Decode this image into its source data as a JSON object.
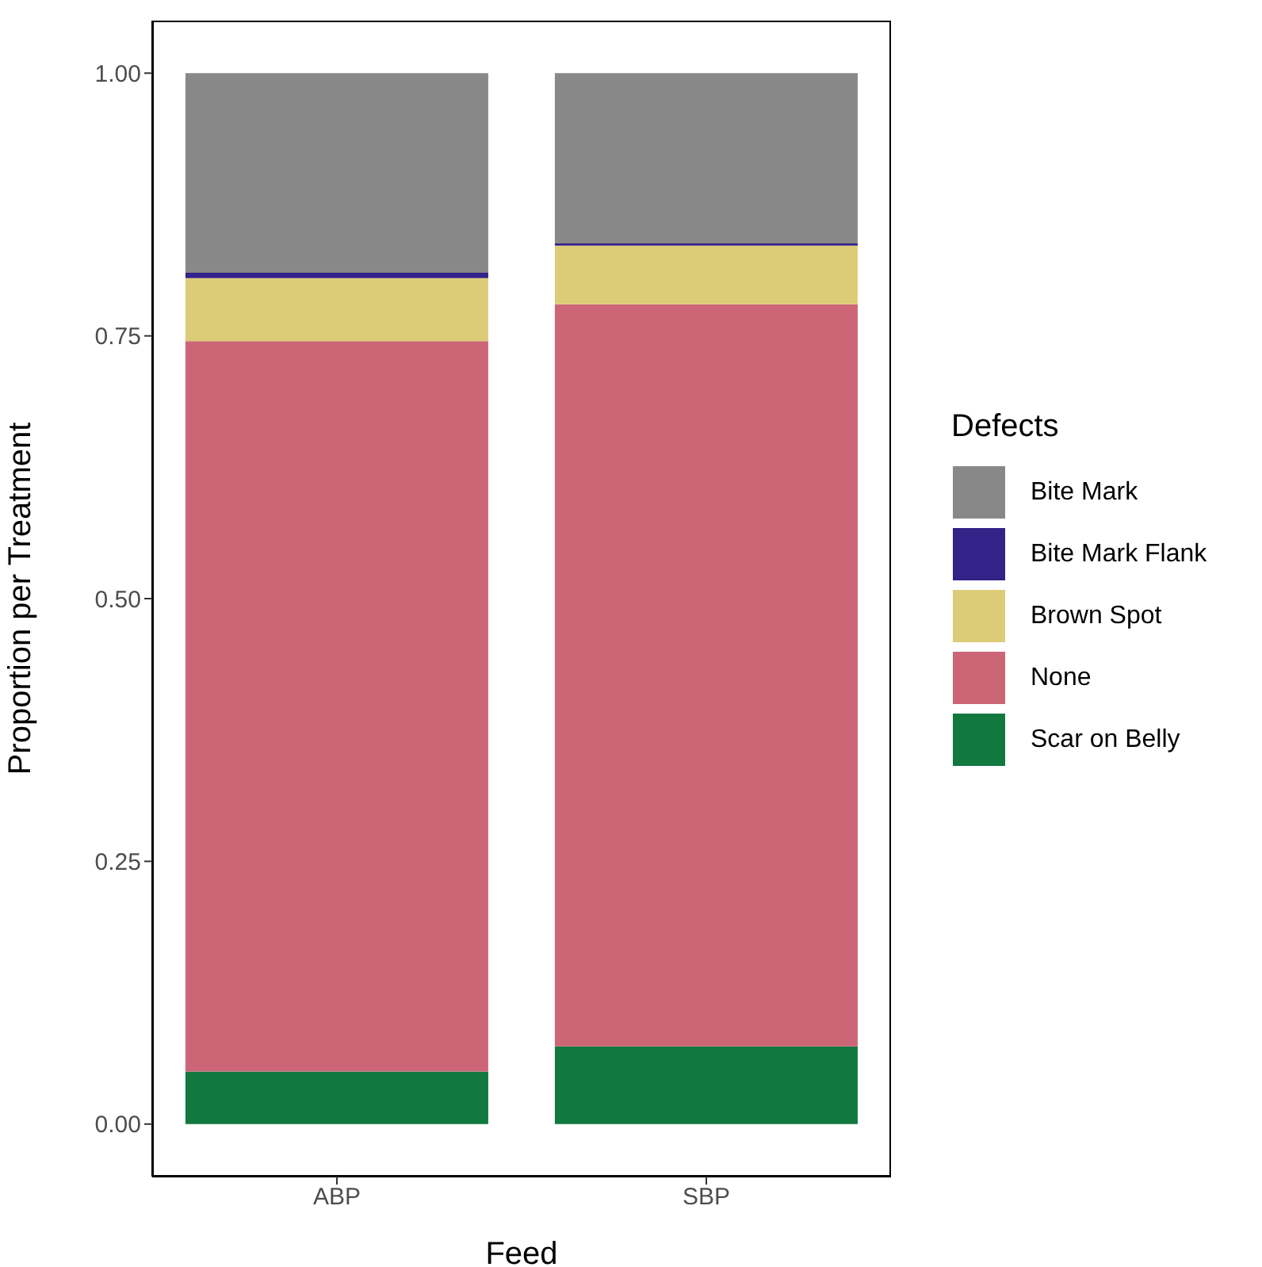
{
  "chart_data": {
    "type": "bar",
    "stacked": true,
    "xlabel": "Feed",
    "ylabel": "Proportion per Treatment",
    "legend_title": "Defects",
    "legend": "right",
    "grid": false,
    "categories": [
      "ABP",
      "SBP"
    ],
    "series": [
      {
        "name": "Scar on Belly",
        "color": "#11783e",
        "values": [
          0.05,
          0.074
        ]
      },
      {
        "name": "None",
        "color": "#cc6677",
        "values": [
          0.695,
          0.706
        ]
      },
      {
        "name": "Brown Spot",
        "color": "#ddcc77",
        "values": [
          0.06,
          0.056
        ]
      },
      {
        "name": "Bite Mark Flank",
        "color": "#332288",
        "values": [
          0.005,
          0.002
        ]
      },
      {
        "name": "Bite Mark",
        "color": "#888888",
        "values": [
          0.19,
          0.162
        ]
      }
    ],
    "ylim": [
      -0.05,
      1.05
    ],
    "yticks": [
      {
        "value": 0,
        "label": "0.00"
      },
      {
        "value": 0.25,
        "label": "0.25"
      },
      {
        "value": 0.5,
        "label": "0.50"
      },
      {
        "value": 0.75,
        "label": "0.75"
      },
      {
        "value": 1,
        "label": "1.00"
      }
    ]
  }
}
